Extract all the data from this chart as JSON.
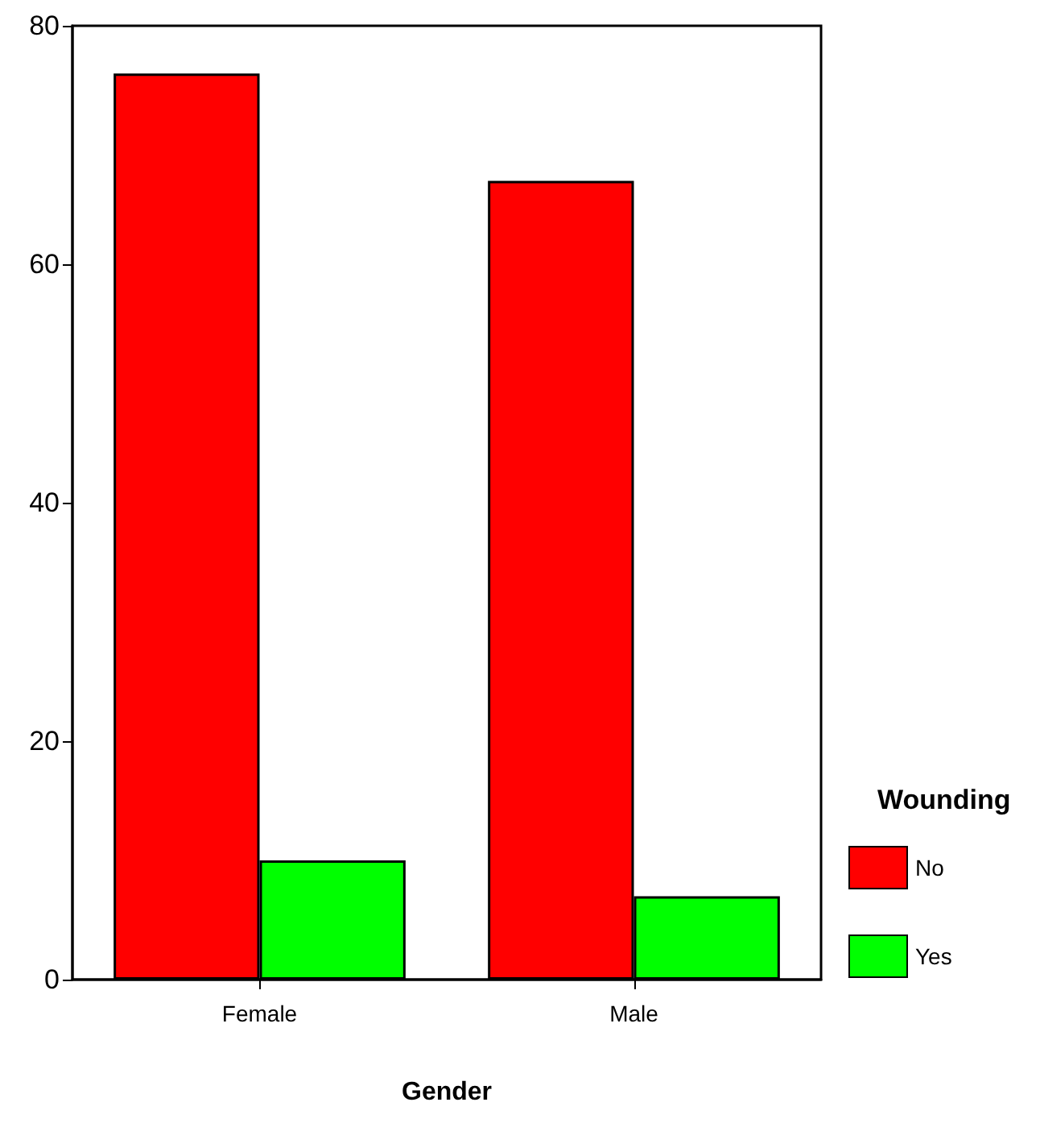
{
  "chart_data": {
    "type": "bar",
    "xlabel": "Gender",
    "legend_title": "Wounding",
    "categories": [
      "Female",
      "Male"
    ],
    "series": [
      {
        "name": "No",
        "color": "#ff0000",
        "values": [
          76,
          67
        ]
      },
      {
        "name": "Yes",
        "color": "#00ff00",
        "values": [
          10,
          7
        ]
      }
    ],
    "ylim": [
      0,
      80
    ],
    "yticks": [
      0,
      20,
      40,
      60,
      80
    ],
    "grid": false,
    "legend": "right"
  }
}
